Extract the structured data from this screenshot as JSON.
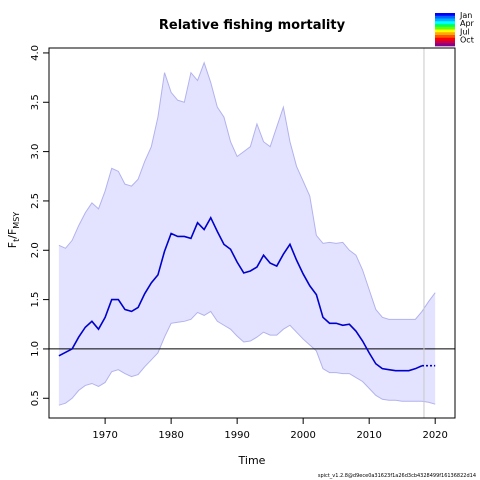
{
  "chart_data": {
    "type": "line",
    "title": "Relative fishing mortality",
    "xlabel": "Time",
    "ylabel": "F_t/F_MSY",
    "ylabel_parts": {
      "main": "F",
      "sub1": "t",
      "sep": "/F",
      "sub2": "MSY"
    },
    "xlim": [
      1961.5,
      2023
    ],
    "ylim": [
      0.3,
      4.05
    ],
    "xticks": [
      1970,
      1980,
      1990,
      2000,
      2010,
      2020
    ],
    "yticks": [
      0.5,
      1.0,
      1.5,
      2.0,
      2.5,
      3.0,
      3.5,
      4.0
    ],
    "reference_line": 1.0,
    "vertical_line_x": 2018.3,
    "estimate": {
      "name": "F/Fmsy estimate",
      "color": "#0000cc",
      "x": [
        1963,
        1965,
        1966,
        1967,
        1968,
        1969,
        1970,
        1971,
        1972,
        1973,
        1974,
        1975,
        1976,
        1977,
        1978,
        1979,
        1980,
        1981,
        1982,
        1983,
        1984,
        1985,
        1986,
        1987,
        1988,
        1989,
        1990,
        1991,
        1992,
        1993,
        1994,
        1995,
        1996,
        1997,
        1998,
        1999,
        2000,
        2001,
        2002,
        2003,
        2004,
        2005,
        2006,
        2007,
        2008,
        2009,
        2010,
        2011,
        2012,
        2013,
        2014,
        2015,
        2016,
        2017,
        2018
      ],
      "y": [
        0.93,
        1.0,
        1.12,
        1.22,
        1.28,
        1.2,
        1.32,
        1.5,
        1.5,
        1.4,
        1.38,
        1.42,
        1.56,
        1.67,
        1.75,
        1.99,
        2.17,
        2.14,
        2.14,
        2.12,
        2.28,
        2.21,
        2.33,
        2.19,
        2.06,
        2.01,
        1.88,
        1.77,
        1.79,
        1.83,
        1.95,
        1.87,
        1.84,
        1.96,
        2.06,
        1.9,
        1.76,
        1.64,
        1.55,
        1.32,
        1.26,
        1.26,
        1.24,
        1.25,
        1.18,
        1.08,
        0.96,
        0.85,
        0.8,
        0.79,
        0.78,
        0.78,
        0.78,
        0.8,
        0.83
      ]
    },
    "forecast": {
      "x": [
        2018,
        2019,
        2020
      ],
      "y": [
        0.83,
        0.83,
        0.83
      ]
    },
    "ci": {
      "name": "95% CI",
      "color": "#e3e3ff",
      "border": "#b2b2ee",
      "x": [
        1963,
        1964,
        1965,
        1966,
        1967,
        1968,
        1969,
        1970,
        1971,
        1972,
        1973,
        1974,
        1975,
        1976,
        1977,
        1978,
        1979,
        1980,
        1981,
        1982,
        1983,
        1984,
        1985,
        1986,
        1987,
        1988,
        1989,
        1990,
        1991,
        1992,
        1993,
        1994,
        1995,
        1996,
        1997,
        1998,
        1999,
        2000,
        2001,
        2002,
        2003,
        2004,
        2005,
        2006,
        2007,
        2008,
        2009,
        2010,
        2011,
        2012,
        2013,
        2014,
        2015,
        2016,
        2017,
        2018,
        2019,
        2020
      ],
      "upper": [
        2.05,
        2.02,
        2.1,
        2.25,
        2.38,
        2.48,
        2.42,
        2.6,
        2.83,
        2.8,
        2.67,
        2.65,
        2.72,
        2.9,
        3.05,
        3.35,
        3.8,
        3.6,
        3.52,
        3.5,
        3.8,
        3.72,
        3.9,
        3.7,
        3.45,
        3.35,
        3.1,
        2.95,
        3.0,
        3.05,
        3.28,
        3.1,
        3.05,
        3.25,
        3.45,
        3.1,
        2.85,
        2.7,
        2.55,
        2.15,
        2.07,
        2.08,
        2.07,
        2.08,
        2.0,
        1.95,
        1.8,
        1.6,
        1.4,
        1.32,
        1.3,
        1.3,
        1.3,
        1.3,
        1.3,
        1.38,
        1.48,
        1.57
      ],
      "lower": [
        0.43,
        0.45,
        0.5,
        0.58,
        0.63,
        0.65,
        0.62,
        0.66,
        0.77,
        0.79,
        0.75,
        0.72,
        0.74,
        0.82,
        0.89,
        0.96,
        1.12,
        1.26,
        1.27,
        1.28,
        1.3,
        1.37,
        1.34,
        1.38,
        1.28,
        1.24,
        1.2,
        1.13,
        1.07,
        1.08,
        1.12,
        1.17,
        1.14,
        1.14,
        1.2,
        1.24,
        1.17,
        1.1,
        1.04,
        0.98,
        0.8,
        0.76,
        0.76,
        0.75,
        0.75,
        0.71,
        0.67,
        0.6,
        0.53,
        0.49,
        0.48,
        0.48,
        0.47,
        0.47,
        0.47,
        0.47,
        0.46,
        0.44
      ]
    },
    "legend": {
      "labels": [
        "Jan",
        "Apr",
        "Jul",
        "Oct"
      ],
      "colors": [
        "#0000ff",
        "#0066ff",
        "#00b0ff",
        "#00ffff",
        "#00ff66",
        "#66ff00",
        "#ffff00",
        "#ffaa00",
        "#ff5500",
        "#ff0000",
        "#cc0044",
        "#880088"
      ]
    },
    "footer": "spict_v1.2.8@d9ece0a31623f1a26d3cb4328499f16136822d14"
  }
}
